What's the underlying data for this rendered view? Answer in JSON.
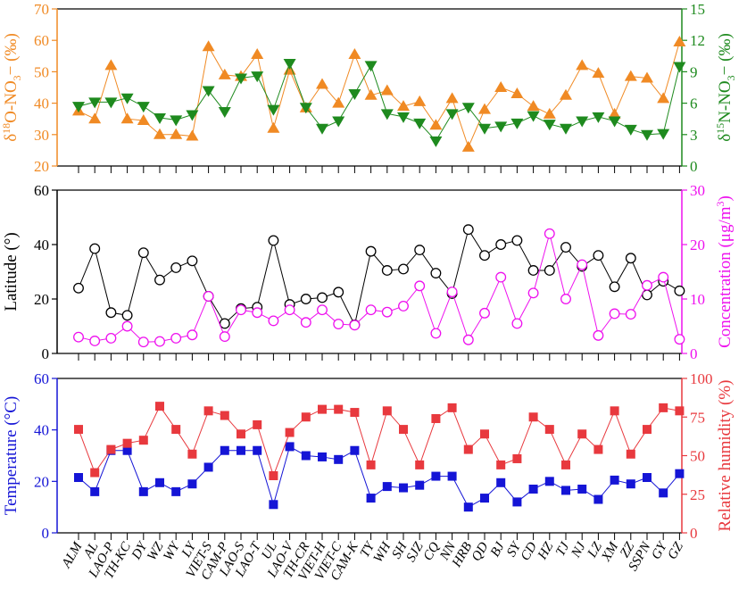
{
  "categories": [
    "ALM",
    "AL",
    "LAO-P",
    "TH-KC",
    "DY",
    "WZ",
    "WY",
    "LY",
    "VIET-S",
    "CAM-P",
    "LAO-S",
    "LAO-T",
    "UL",
    "LAO-V",
    "TH-CR",
    "VIET-H",
    "VIET-C",
    "CAM-K",
    "TY",
    "WH",
    "SH",
    "SJZ",
    "CQ",
    "NN",
    "HRB",
    "QD",
    "BJ",
    "SY",
    "CD",
    "HZ",
    "TJ",
    "NJ",
    "LZ",
    "XM",
    "ZZ",
    "SSPN",
    "GY",
    "GZ"
  ],
  "chart_data": [
    {
      "type": "line",
      "name": "isotopes",
      "left_axis": {
        "label_pre": "δ",
        "label_sup": "18",
        "label_main": "O-NO",
        "label_sub": "3",
        "label_post": "− (‰)",
        "range": [
          20,
          70
        ],
        "ticks": [
          20,
          30,
          40,
          50,
          60,
          70
        ],
        "color": "#f08a24"
      },
      "right_axis": {
        "label_pre": "δ",
        "label_sup": "15",
        "label_main": "N-NO",
        "label_sub": "3",
        "label_post": "− (‰)",
        "range": [
          0,
          15
        ],
        "ticks": [
          0,
          3,
          6,
          9,
          12,
          15
        ],
        "color": "#1e8a1e"
      },
      "series": [
        {
          "name": "d18O-NO3",
          "axis": "left",
          "marker": "triangle-up",
          "color": "#f08a24",
          "values": [
            37.5,
            35,
            52,
            35,
            34.5,
            30,
            30,
            29.5,
            58,
            49,
            48.5,
            55.5,
            32,
            50.5,
            38.5,
            46,
            40,
            55.5,
            42.5,
            44,
            39,
            40.5,
            33,
            41.5,
            26,
            38,
            45,
            43,
            39,
            36.5,
            42.5,
            52,
            49.5,
            36.5,
            48.5,
            48,
            41.5,
            59.5
          ]
        },
        {
          "name": "d15N-NO3",
          "axis": "right",
          "marker": "triangle-down",
          "color": "#1e8a1e",
          "values": [
            5.7,
            6.1,
            6.1,
            6.5,
            5.7,
            4.6,
            4.4,
            4.9,
            7.2,
            5.2,
            8.4,
            8.6,
            5.4,
            9.8,
            5.6,
            3.6,
            4.3,
            6.9,
            9.6,
            5,
            4.7,
            4.1,
            2.4,
            5,
            5.6,
            3.6,
            3.8,
            4.1,
            4.8,
            4,
            3.6,
            4.3,
            4.7,
            4.3,
            3.5,
            3,
            3.1,
            9.5
          ]
        }
      ]
    },
    {
      "type": "line",
      "name": "location",
      "left_axis": {
        "label": "Latitude (°)",
        "range": [
          0,
          60
        ],
        "ticks": [
          0,
          20,
          40,
          60
        ],
        "color": "#000000"
      },
      "right_axis": {
        "label_main": "Concentration (μg/m",
        "label_sup": "3",
        "label_post": ")",
        "range": [
          0,
          30
        ],
        "ticks": [
          0,
          10,
          20,
          30
        ],
        "color": "#ee10ee"
      },
      "series": [
        {
          "name": "Latitude",
          "axis": "left",
          "marker": "circle",
          "color": "#000000",
          "values": [
            24,
            38.5,
            15,
            14,
            37,
            27,
            31.5,
            34,
            21,
            11,
            16.5,
            17,
            41.5,
            18,
            20,
            20.5,
            22.5,
            10.5,
            37.5,
            30.5,
            31,
            38,
            29.5,
            22,
            45.5,
            36,
            40,
            41.5,
            30.5,
            30.5,
            39,
            32,
            36,
            24.5,
            35,
            21.5,
            26.5,
            23
          ]
        },
        {
          "name": "Concentration",
          "axis": "right",
          "marker": "circle",
          "color": "#ee10ee",
          "values": [
            3,
            2.3,
            2.8,
            5,
            2.1,
            2.2,
            2.8,
            3.4,
            10.5,
            3.1,
            8,
            7.5,
            6,
            8,
            5.7,
            8,
            5.4,
            5.2,
            8,
            7.6,
            8.7,
            12.4,
            3.7,
            11.3,
            2.5,
            7.4,
            14,
            5.5,
            11.1,
            22,
            10,
            16.3,
            3.3,
            7.3,
            7.2,
            12.5,
            14,
            2.6
          ]
        }
      ]
    },
    {
      "type": "line",
      "name": "meteorology",
      "left_axis": {
        "label": "Temperature (°C)",
        "range": [
          0,
          60
        ],
        "ticks": [
          0,
          20,
          40,
          60
        ],
        "color": "#1515d6"
      },
      "right_axis": {
        "label": "Relative humidity (%)",
        "range": [
          0,
          100
        ],
        "ticks": [
          0,
          25,
          50,
          75,
          100
        ],
        "color": "#e8393e"
      },
      "series": [
        {
          "name": "Temperature",
          "axis": "left",
          "marker": "square",
          "color": "#1515d6",
          "values": [
            21.5,
            16,
            32,
            32,
            16,
            19.5,
            16,
            19,
            25.5,
            32,
            32,
            32,
            11,
            33.5,
            30,
            29.5,
            28.5,
            32,
            13.5,
            18,
            17.5,
            18.5,
            22,
            22,
            10,
            13.5,
            19.5,
            12,
            17,
            20,
            16.5,
            17,
            13,
            20.5,
            19,
            21.5,
            15.5,
            23
          ]
        },
        {
          "name": "Relative humidity",
          "axis": "right",
          "marker": "square",
          "color": "#e8393e",
          "values": [
            67,
            39,
            54,
            58,
            60,
            82,
            67,
            51,
            79,
            76,
            64,
            70,
            37,
            65,
            75,
            80,
            80,
            78,
            44,
            79,
            67,
            44,
            74,
            81,
            54,
            64,
            44,
            48,
            75,
            67,
            44,
            64,
            54,
            79,
            51,
            67,
            81,
            79
          ]
        }
      ]
    }
  ]
}
